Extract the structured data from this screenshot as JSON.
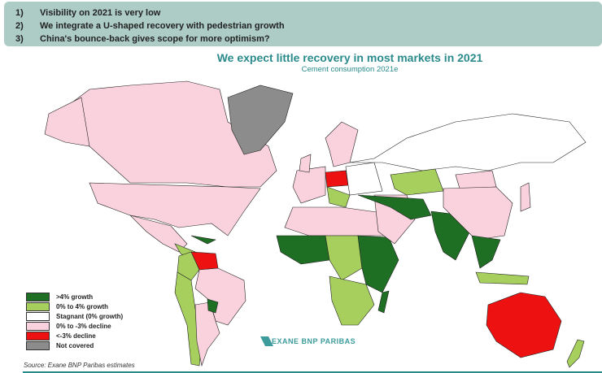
{
  "header": {
    "points": [
      {
        "num": "1)",
        "text": "Visibility on 2021 is very low"
      },
      {
        "num": "2)",
        "text": "We integrate a U-shaped recovery with pedestrian growth"
      },
      {
        "num": "3)",
        "text": "China's bounce-back gives scope for more optimism?"
      }
    ]
  },
  "title": "We expect little recovery in most markets in 2021",
  "subtitle": "Cement consumption 2021e",
  "legend": [
    {
      "label": ">4% growth",
      "color": "#1e6e23"
    },
    {
      "label": "0% to 4% growth",
      "color": "#a6cf5e"
    },
    {
      "label": "Stagnant (0% growth)",
      "color": "#ffffff"
    },
    {
      "label": "0% to -3% decline",
      "color": "#fad2de"
    },
    {
      "label": "<-3% decline",
      "color": "#ee1111"
    },
    {
      "label": "Not covered",
      "color": "#8c8c8c"
    }
  ],
  "logo": "EXANE BNP PARIBAS",
  "source": "Source: Exane BNP Paribas estimates"
}
